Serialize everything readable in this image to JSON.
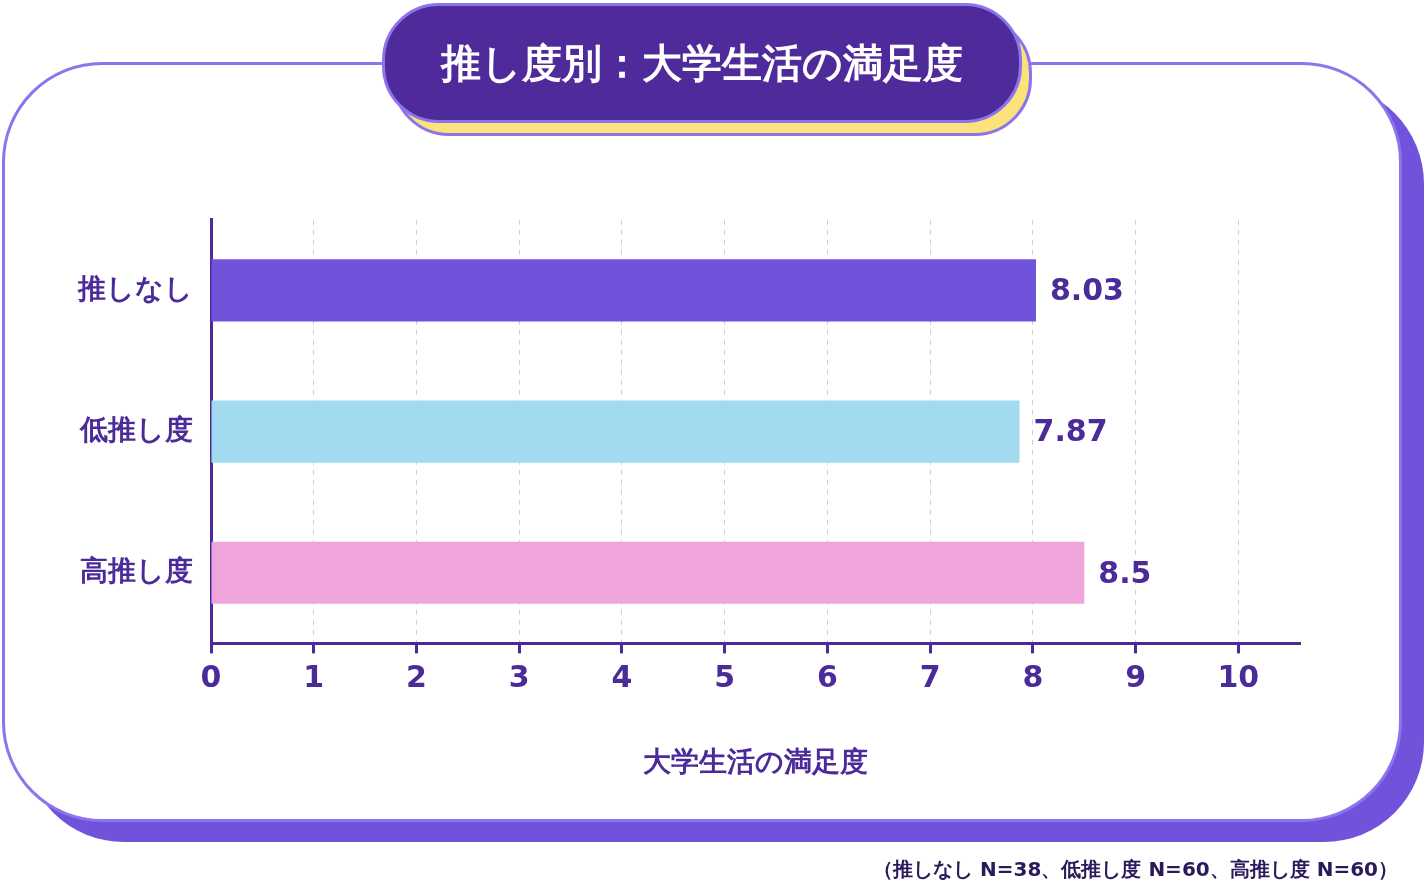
{
  "chart_data": {
    "type": "bar",
    "orientation": "horizontal",
    "title": "推し度別：大学生活の満足度",
    "xlabel": "大学生活の満足度",
    "categories": [
      "推しなし",
      "低推し度",
      "高推し度"
    ],
    "values": [
      8.03,
      7.87,
      8.5
    ],
    "colors": [
      "#7152db",
      "#a2dbf0",
      "#efa5dc"
    ],
    "xlim": [
      0,
      10.6
    ],
    "xticks": [
      0,
      1,
      2,
      3,
      4,
      5,
      6,
      7,
      8,
      9,
      10
    ],
    "grid": "x",
    "data_labels": true,
    "annotations": [
      "（推しなし N=38、低推し度 N=60、高推し度 N=60）"
    ]
  }
}
